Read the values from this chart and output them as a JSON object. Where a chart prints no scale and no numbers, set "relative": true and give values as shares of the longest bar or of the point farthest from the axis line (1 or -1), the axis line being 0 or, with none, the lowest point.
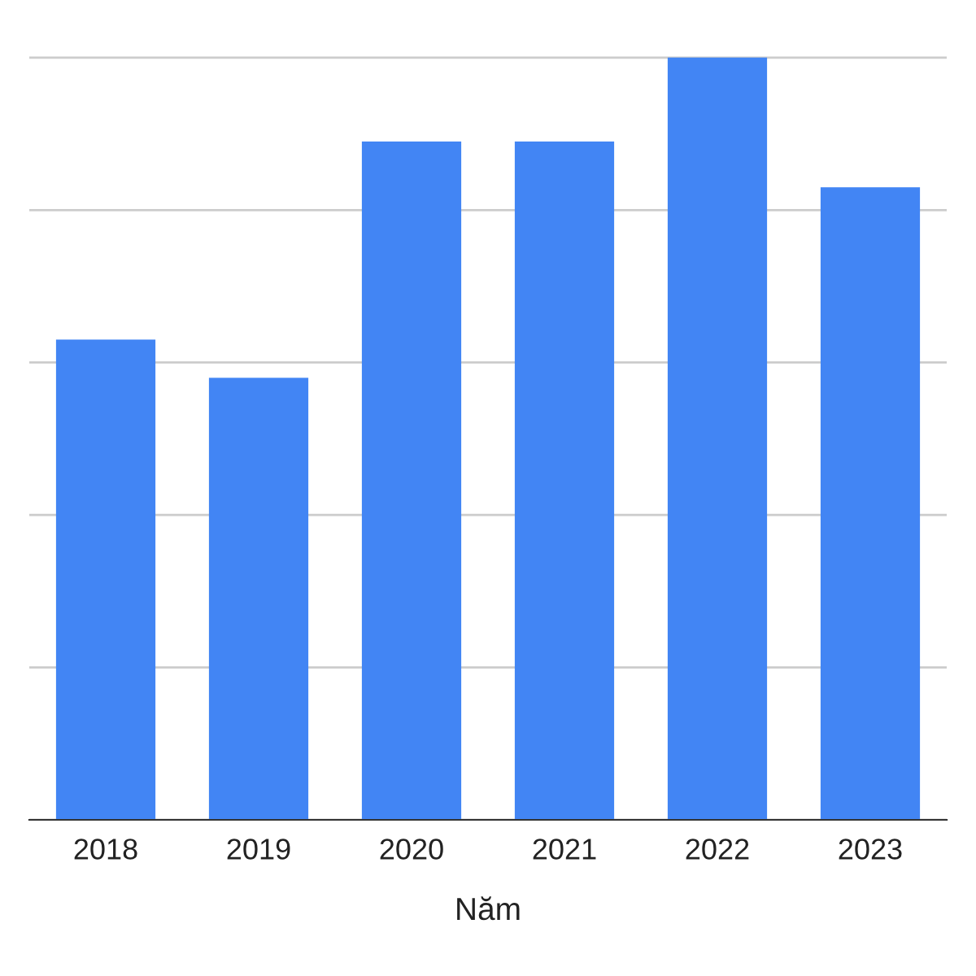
{
  "chart_data": {
    "type": "bar",
    "xlabel": "Năm",
    "categories": [
      "2018",
      "2019",
      "2020",
      "2021",
      "2022",
      "2023"
    ],
    "values": [
      0.63,
      0.58,
      0.89,
      0.89,
      1,
      0.83
    ],
    "color": "#4285f4",
    "relative": true,
    "grid": "y"
  }
}
